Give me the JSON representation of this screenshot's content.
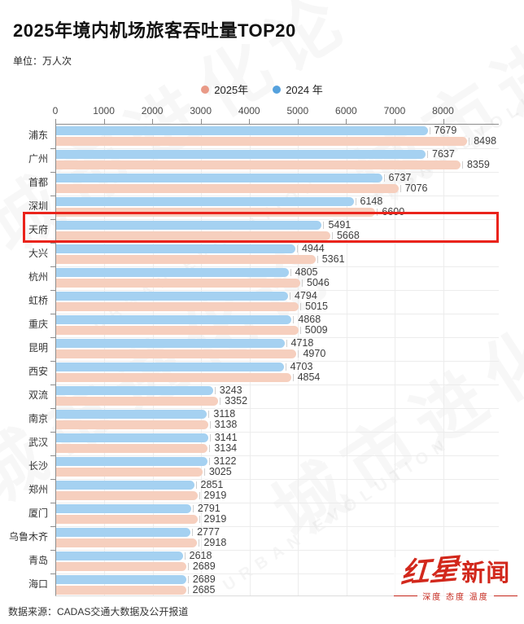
{
  "title": "2025年境内机场旅客吞吐量TOP20",
  "unit": "单位：万人次",
  "legend": [
    {
      "label": "2025年",
      "color": "#e99a87"
    },
    {
      "label": "2024 年",
      "color": "#55a1dd"
    }
  ],
  "chart_data": {
    "type": "bar",
    "orientation": "horizontal",
    "title": "2025年境内机场旅客吞吐量TOP20",
    "unit": "万人次",
    "categories": [
      "浦东",
      "广州",
      "首都",
      "深圳",
      "天府",
      "大兴",
      "杭州",
      "虹桥",
      "重庆",
      "昆明",
      "西安",
      "双流",
      "南京",
      "武汉",
      "长沙",
      "郑州",
      "厦门",
      "乌鲁木齐",
      "青岛",
      "海口"
    ],
    "series": [
      {
        "key": "2024",
        "name": "2024 年",
        "color": "#a5d1f1",
        "values": [
          7679,
          7637,
          6737,
          6148,
          5491,
          4944,
          4805,
          4794,
          4868,
          4718,
          4703,
          3243,
          3118,
          3141,
          3122,
          2851,
          2791,
          2777,
          2618,
          2689
        ]
      },
      {
        "key": "2025",
        "name": "2025年",
        "color": "#f6cfbe",
        "values": [
          8498,
          8359,
          7076,
          6600,
          5668,
          5361,
          5046,
          5015,
          5009,
          4970,
          4854,
          3352,
          3138,
          3134,
          3025,
          2919,
          2919,
          2918,
          2689,
          2685
        ]
      }
    ],
    "axis": {
      "min": 0,
      "max": 8000,
      "step": 1000,
      "ticks": [
        "0",
        "1000",
        "2000",
        "3000",
        "4000",
        "5000",
        "6000",
        "7000",
        "8000"
      ],
      "plot_value_span": 9150
    },
    "bar_order_top_to_bottom": [
      "2024 年",
      "2025年"
    ],
    "highlight": {
      "category": "天府",
      "box_color": "#ea231b"
    },
    "legend_position": "top-center",
    "grid": true,
    "sorted_by": "2025年 descending"
  },
  "footer": {
    "source": "数据来源：CADAS交通大数据及公开报道"
  },
  "logo": {
    "script": "红星",
    "star": "★",
    "block": "新闻",
    "tagline": "深度 态度 温度",
    "color": "#d2281c"
  },
  "watermark": {
    "cn": "城市进化论",
    "en": "URBAN EVOLUTION"
  }
}
